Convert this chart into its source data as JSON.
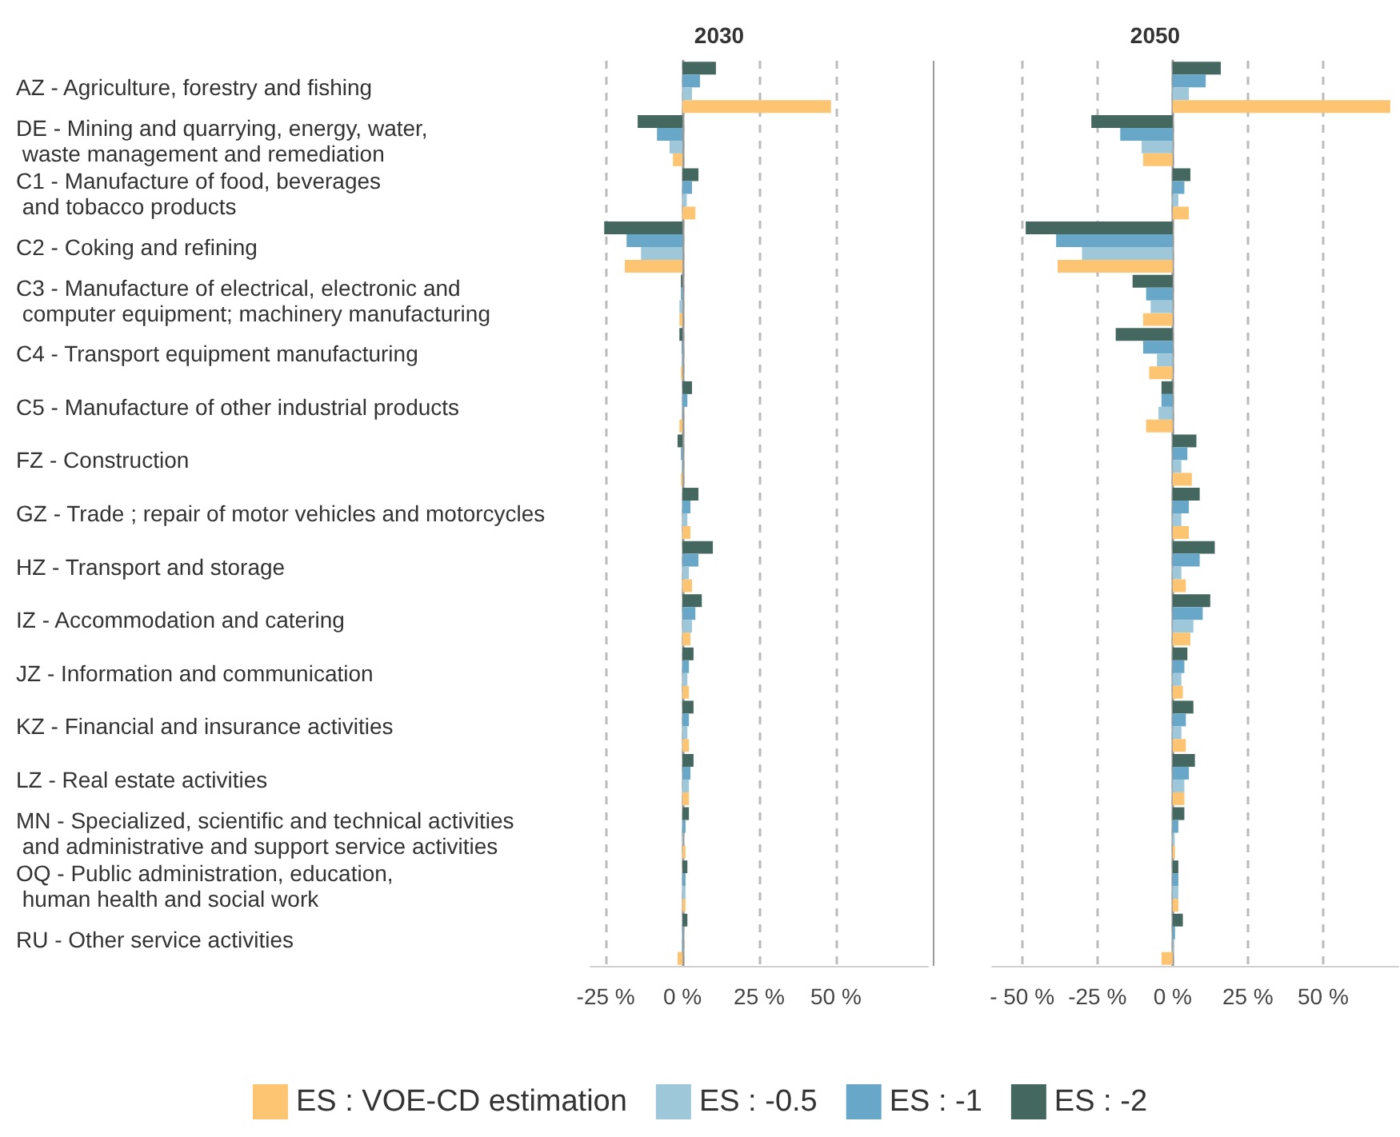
{
  "chart_data": [
    {
      "type": "bar",
      "orientation": "horizontal",
      "title": "2030",
      "categories": [
        "AZ - Agriculture, forestry and fishing",
        "DE - Mining and quarrying, energy, water,\n waste management and remediation",
        "C1 - Manufacture of food, beverages\n and tobacco products",
        "C2 - Coking and refining",
        "C3 - Manufacture of electrical, electronic and\n computer equipment; machinery manufacturing",
        "C4 - Transport equipment manufacturing",
        "C5 - Manufacture of other industrial products",
        "FZ - Construction",
        "GZ - Trade ; repair of motor vehicles and motorcycles",
        "HZ - Transport and storage",
        "IZ - Accommodation and catering",
        "JZ - Information and communication",
        "KZ - Financial and insurance activities",
        "LZ - Real estate activities",
        "MN - Specialized, scientific and technical activities\n and administrative and support service activities",
        "OQ - Public administration, education,\n human health and social work",
        "RU - Other service activities"
      ],
      "series": [
        {
          "name": "ES : VOE-CD estimation",
          "color": "#fdc572",
          "values": [
            48.4,
            -3.1,
            4.2,
            -18.8,
            -1,
            -0.5,
            -1,
            -0.5,
            2.6,
            3.1,
            2.6,
            2.1,
            2.1,
            2.1,
            1,
            1,
            -1.6
          ]
        },
        {
          "name": "ES : -0.5",
          "color": "#9ec8da",
          "values": [
            3.1,
            -4.2,
            1.4,
            -13.5,
            -1,
            -0.3,
            -0.2,
            -0.3,
            1.6,
            2.1,
            3.1,
            1.6,
            1.6,
            2.1,
            0.2,
            1,
            -0.3
          ]
        },
        {
          "name": "ES : -1",
          "color": "#68a7c8",
          "values": [
            5.7,
            -8.3,
            3.1,
            -18.2,
            -0.5,
            -0.3,
            1.6,
            -0.5,
            2.6,
            5.2,
            4.2,
            2.1,
            2.1,
            2.6,
            1,
            1,
            0.3
          ]
        },
        {
          "name": "ES : -2",
          "color": "#44685f",
          "values": [
            10.9,
            -14.6,
            5.2,
            -25.5,
            -0.5,
            -1,
            3.1,
            -1.6,
            5.2,
            9.9,
            6.3,
            3.6,
            3.6,
            3.6,
            2.1,
            1.6,
            1.6
          ]
        }
      ],
      "xlim": [
        -30,
        80
      ],
      "xticks": [
        {
          "value": -25,
          "label": "-25 %"
        },
        {
          "value": 0,
          "label": "0 %"
        },
        {
          "value": 25,
          "label": "25 %"
        },
        {
          "value": 50,
          "label": "50 %"
        }
      ],
      "grid": "x",
      "legend": "bottom"
    },
    {
      "type": "bar",
      "orientation": "horizontal",
      "title": "2050",
      "tick_labels": "x",
      "categories": [
        null,
        null,
        null,
        null,
        null,
        null,
        null,
        null,
        null,
        null,
        null,
        null,
        null,
        null,
        null,
        null,
        null
      ],
      "series": [
        {
          "color": "#fdc572",
          "values": [
            72.3,
            -9.8,
            5.4,
            -38.2,
            -9.8,
            -7.8,
            -8.8,
            6.4,
            5.4,
            4.4,
            5.9,
            3.4,
            4.4,
            3.9,
            0.8,
            1.9,
            -3.7
          ]
        },
        {
          "color": "#9ec8da",
          "values": [
            5.4,
            -10.3,
            1.9,
            -30.1,
            -7.3,
            -5.2,
            -4.7,
            2.9,
            2.9,
            2.9,
            6.9,
            2.9,
            2.9,
            3.9,
            0.7,
            1.9,
            0.3
          ]
        },
        {
          "color": "#68a7c8",
          "values": [
            11,
            -17.4,
            3.9,
            -38.7,
            -8.8,
            -9.8,
            -3.7,
            4.9,
            5.4,
            9,
            10,
            3.9,
            4.4,
            5.4,
            1.9,
            1.9,
            0.8
          ]
        },
        {
          "color": "#44685f",
          "values": [
            16,
            -27,
            5.9,
            -48.8,
            -13.3,
            -18.9,
            -3.7,
            7.9,
            9,
            14,
            12.5,
            4.9,
            6.9,
            7.4,
            3.9,
            1.9,
            3.4
          ]
        }
      ],
      "xlim": [
        -60,
        75
      ],
      "xticks": [
        {
          "value": -50,
          "label": "- 50 %"
        },
        {
          "value": -25,
          "label": "-25 %"
        },
        {
          "value": 0,
          "label": "0 %"
        },
        {
          "value": 25,
          "label": "25 %"
        },
        {
          "value": 50,
          "label": "50 %"
        }
      ],
      "grid": "x"
    }
  ]
}
